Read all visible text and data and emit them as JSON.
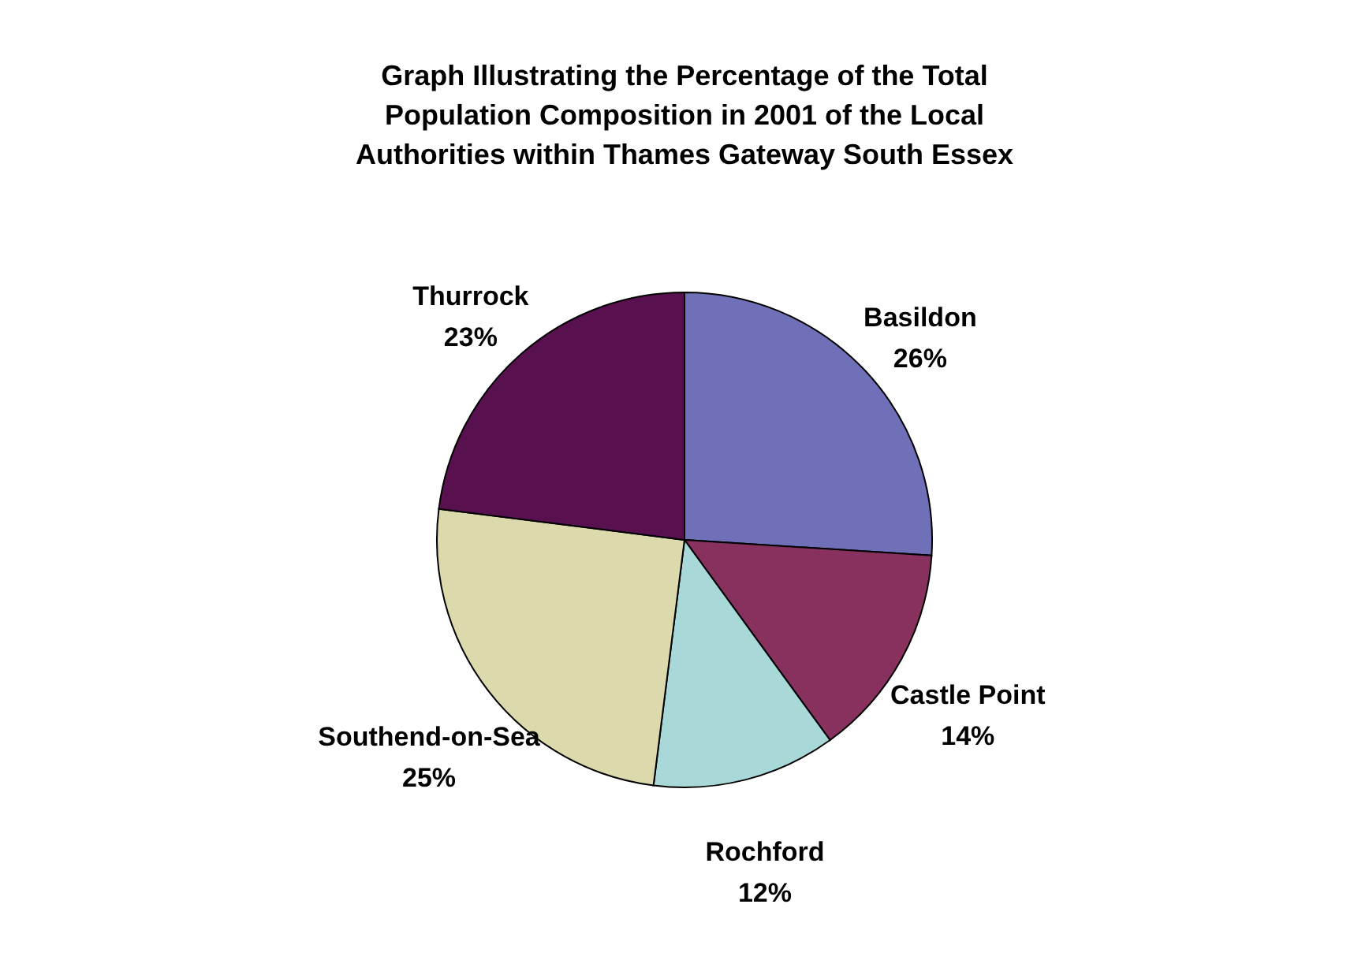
{
  "chart_data": {
    "type": "pie",
    "title": "Graph Illustrating the Percentage of the Total Population Composition in 2001 of the Local Authorities within Thames Gateway South Essex",
    "categories": [
      "Basildon",
      "Castle Point",
      "Rochford",
      "Southend-on-Sea",
      "Thurrock"
    ],
    "values": [
      26,
      14,
      12,
      25,
      23
    ],
    "value_labels": [
      "26%",
      "14%",
      "12%",
      "25%",
      "23%"
    ],
    "colors": [
      "#7070b8",
      "#88305e",
      "#a8d8d8",
      "#dcd9ad",
      "#58104e"
    ],
    "legend": false
  }
}
